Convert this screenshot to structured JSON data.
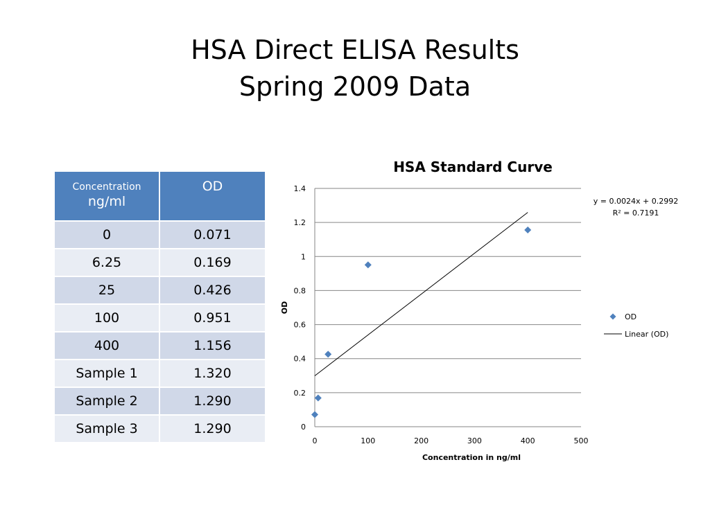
{
  "slide": {
    "title_line1": "HSA Direct ELISA Results",
    "title_line2": "Spring 2009 Data"
  },
  "table": {
    "header_concentration_top": "Concentration",
    "header_concentration_bottom": "ng/ml",
    "header_od": "OD",
    "rows": [
      {
        "concentration": "0",
        "od": "0.071"
      },
      {
        "concentration": "6.25",
        "od": "0.169"
      },
      {
        "concentration": "25",
        "od": "0.426"
      },
      {
        "concentration": "100",
        "od": "0.951"
      },
      {
        "concentration": "400",
        "od": "1.156"
      },
      {
        "concentration": "Sample 1",
        "od": "1.320"
      },
      {
        "concentration": "Sample 2",
        "od": "1.290"
      },
      {
        "concentration": "Sample 3",
        "od": "1.290"
      }
    ]
  },
  "chart_data": {
    "type": "scatter",
    "title": "HSA Standard Curve",
    "xlabel": "Concentration in ng/ml",
    "ylabel": "OD",
    "xlim": [
      0,
      500
    ],
    "ylim": [
      0,
      1.4
    ],
    "x_ticks": [
      "0",
      "100",
      "200",
      "300",
      "400",
      "500"
    ],
    "y_ticks": [
      "0",
      "0.2",
      "0.4",
      "0.6",
      "0.8",
      "1",
      "1.2",
      "1.4"
    ],
    "x_tick_values": [
      0,
      100,
      200,
      300,
      400,
      500
    ],
    "y_tick_values": [
      0,
      0.2,
      0.4,
      0.6,
      0.8,
      1.0,
      1.2,
      1.4
    ],
    "grid": "horizontal",
    "legend_position": "right",
    "series": [
      {
        "name": "OD",
        "color": "#4f81bd",
        "marker": "diamond",
        "x": [
          0,
          6.25,
          25,
          100,
          400
        ],
        "y": [
          0.071,
          0.169,
          0.426,
          0.951,
          1.156
        ]
      }
    ],
    "trendline": {
      "name": "Linear (OD)",
      "color": "#000000",
      "slope": 0.0024,
      "intercept": 0.2992,
      "x_range": [
        0,
        400
      ],
      "equation": "y = 0.0024x + 0.2992",
      "r_squared": "R² = 0.7191"
    }
  }
}
